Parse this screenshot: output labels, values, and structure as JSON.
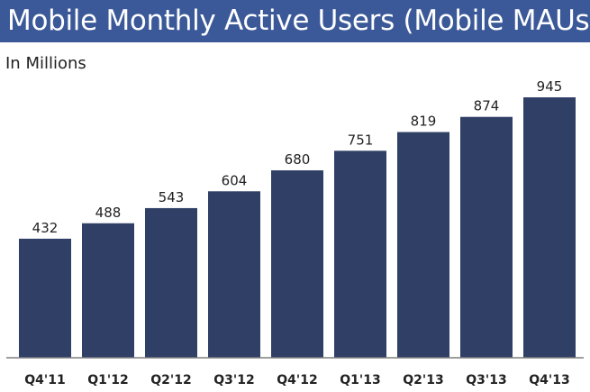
{
  "header": {
    "title": "Mobile Monthly Active Users (Mobile MAUs)",
    "subtitle": "In Millions"
  },
  "colors": {
    "header_bg": "#3b5998",
    "bar": "#2f3f66",
    "axis": "#7f7f7f"
  },
  "chart_data": {
    "type": "bar",
    "title": "Mobile Monthly Active Users (Mobile MAUs)",
    "subtitle": "In Millions",
    "categories": [
      "Q4'11",
      "Q1'12",
      "Q2'12",
      "Q3'12",
      "Q4'12",
      "Q1'13",
      "Q2'13",
      "Q3'13",
      "Q4'13"
    ],
    "values": [
      432,
      488,
      543,
      604,
      680,
      751,
      819,
      874,
      945
    ],
    "data_labels": [
      "432",
      "488",
      "543",
      "604",
      "680",
      "751",
      "819",
      "874",
      "945"
    ],
    "xlabel": "",
    "ylabel": "",
    "grid": false,
    "legend": "none"
  }
}
